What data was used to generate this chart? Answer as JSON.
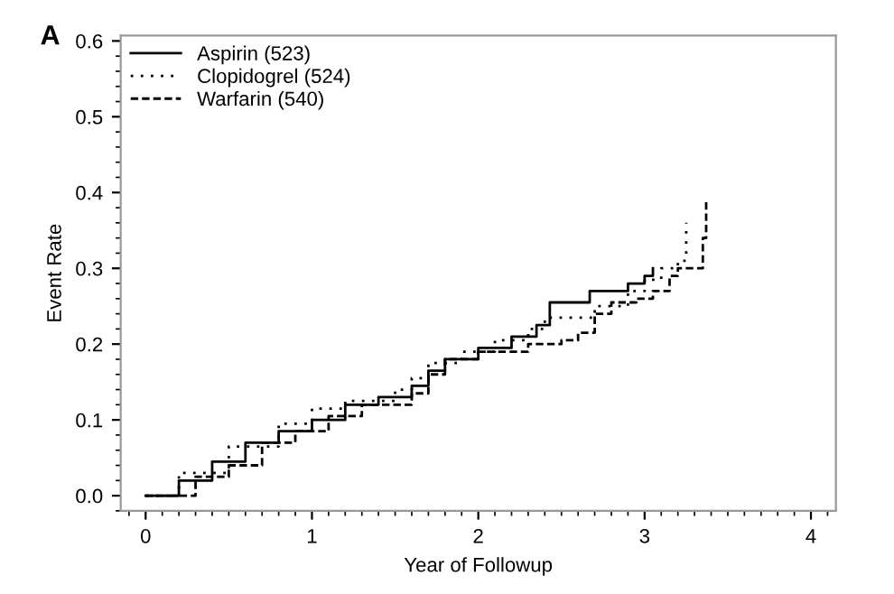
{
  "chart_data": {
    "type": "step",
    "xlabel": "Year of Followup",
    "ylabel": "Event Rate",
    "annotations": [
      "A"
    ],
    "xlim": [
      -0.15,
      4.15
    ],
    "ylim": [
      -0.02,
      0.607
    ],
    "xticks": [
      0,
      1,
      2,
      3,
      4
    ],
    "yticks": [
      {
        "value": 0,
        "label": "0.0"
      },
      0.1,
      0.2,
      0.3,
      0.4,
      0.5,
      0.6
    ],
    "grid": false,
    "legend": "top left",
    "series": [
      {
        "name": "Aspirin (523)",
        "color": "#000000",
        "line_style": "solid",
        "x": [
          0,
          0.2,
          0.4,
          0.6,
          0.8,
          1.0,
          1.2,
          1.4,
          1.6,
          1.7,
          1.8,
          2.0,
          2.2,
          2.35,
          2.43,
          2.67,
          2.9,
          3.0,
          3.05
        ],
        "values": [
          0,
          0.02,
          0.045,
          0.07,
          0.085,
          0.1,
          0.12,
          0.13,
          0.145,
          0.165,
          0.18,
          0.195,
          0.21,
          0.225,
          0.255,
          0.27,
          0.28,
          0.29,
          0.3
        ]
      },
      {
        "name": "Clopidogrel (524)",
        "color": "#000000",
        "line_style": "dotted",
        "x": [
          0,
          0.2,
          0.5,
          0.8,
          1.0,
          1.2,
          1.5,
          1.6,
          1.7,
          1.9,
          2.1,
          2.3,
          2.4,
          2.6,
          2.7,
          2.9,
          3.0,
          3.1,
          3.2,
          3.25
        ],
        "values": [
          0,
          0.03,
          0.065,
          0.095,
          0.115,
          0.125,
          0.14,
          0.155,
          0.175,
          0.19,
          0.205,
          0.22,
          0.235,
          0.235,
          0.25,
          0.27,
          0.285,
          0.3,
          0.31,
          0.36
        ]
      },
      {
        "name": "Warfarin (540)",
        "color": "#000000",
        "line_style": "dashed",
        "x": [
          0,
          0.3,
          0.5,
          0.7,
          0.9,
          1.1,
          1.3,
          1.6,
          1.7,
          1.8,
          2.0,
          2.3,
          2.5,
          2.6,
          2.7,
          2.8,
          2.95,
          3.05,
          3.15,
          3.2,
          3.3,
          3.35,
          3.37
        ],
        "values": [
          0,
          0.025,
          0.04,
          0.07,
          0.085,
          0.105,
          0.12,
          0.135,
          0.16,
          0.18,
          0.19,
          0.2,
          0.205,
          0.215,
          0.24,
          0.255,
          0.26,
          0.27,
          0.29,
          0.3,
          0.3,
          0.34,
          0.39
        ]
      }
    ]
  }
}
